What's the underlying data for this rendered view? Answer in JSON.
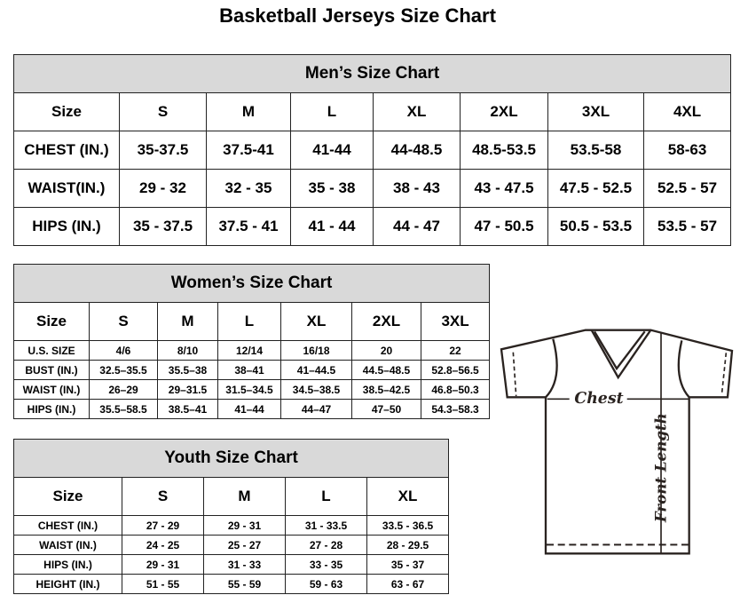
{
  "title": "Basketball Jerseys Size Chart",
  "men": {
    "heading": "Men’s Size Chart",
    "header": [
      "Size",
      "S",
      "M",
      "L",
      "XL",
      "2XL",
      "3XL",
      "4XL"
    ],
    "rows": [
      [
        "CHEST (IN.)",
        "35-37.5",
        "37.5-41",
        "41-44",
        "44-48.5",
        "48.5-53.5",
        "53.5-58",
        "58-63"
      ],
      [
        "WAIST(IN.)",
        "29 - 32",
        "32 - 35",
        "35 - 38",
        "38 - 43",
        "43 - 47.5",
        "47.5 - 52.5",
        "52.5 - 57"
      ],
      [
        "HIPS (IN.)",
        "35 - 37.5",
        "37.5 - 41",
        "41 - 44",
        "44 - 47",
        "47 - 50.5",
        "50.5 - 53.5",
        "53.5 - 57"
      ]
    ]
  },
  "women": {
    "heading": "Women’s Size Chart",
    "header": [
      "Size",
      "S",
      "M",
      "L",
      "XL",
      "2XL",
      "3XL"
    ],
    "rows": [
      [
        "U.S. SIZE",
        "4/6",
        "8/10",
        "12/14",
        "16/18",
        "20",
        "22"
      ],
      [
        "BUST (IN.)",
        "32.5–35.5",
        "35.5–38",
        "38–41",
        "41–44.5",
        "44.5–48.5",
        "52.8–56.5"
      ],
      [
        "WAIST (IN.)",
        "26–29",
        "29–31.5",
        "31.5–34.5",
        "34.5–38.5",
        "38.5–42.5",
        "46.8–50.3"
      ],
      [
        "HIPS (IN.)",
        "35.5–58.5",
        "38.5–41",
        "41–44",
        "44–47",
        "47–50",
        "54.3–58.3"
      ]
    ]
  },
  "youth": {
    "heading": "Youth Size Chart",
    "header": [
      "Size",
      "S",
      "M",
      "L",
      "XL"
    ],
    "rows": [
      [
        "CHEST (IN.)",
        "27 - 29",
        "29 - 31",
        "31 - 33.5",
        "33.5 - 36.5"
      ],
      [
        "WAIST (IN.)",
        "24 - 25",
        "25 - 27",
        "27 - 28",
        "28 - 29.5"
      ],
      [
        "HIPS (IN.)",
        "29 - 31",
        "31 - 33",
        "33 - 35",
        "35 - 37"
      ],
      [
        "HEIGHT (IN.)",
        "51 - 55",
        "55 - 59",
        "59 - 63",
        "63 - 67"
      ]
    ]
  },
  "diagram": {
    "chest_label": "Chest",
    "length_label": "Front Length",
    "icon": "t-shirt-icon"
  }
}
